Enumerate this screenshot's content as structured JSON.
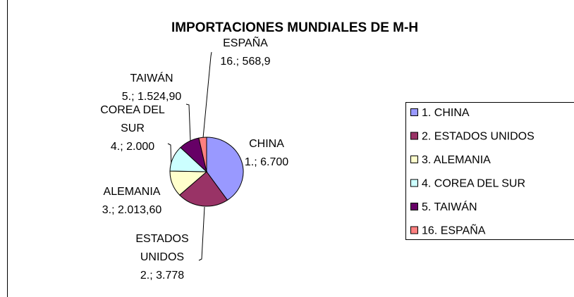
{
  "chart_data": {
    "type": "pie",
    "title": "IMPORTACIONES MUNDIALES DE M-H",
    "categories": [
      "1. CHINA",
      "2. ESTADOS UNIDOS",
      "3. ALEMANIA",
      "4. COREA DEL SUR",
      "5. TAIWÁN",
      "16. ESPAÑA"
    ],
    "label_names": [
      "CHINA",
      "ESTADOS UNIDOS",
      "ALEMANIA",
      "COREA DEL SUR",
      "TAIWÁN",
      "ESPAÑA"
    ],
    "values": [
      6700,
      3778,
      2013.6,
      2000,
      1524.9,
      568.9
    ],
    "value_labels": [
      "1.; 6.700",
      "2.; 3.778",
      "3.; 2.013,60",
      "4.; 2.000",
      "5.; 1.524,90",
      "16.; 568,9"
    ],
    "colors": [
      "#9999ff",
      "#993366",
      "#ffffcc",
      "#ccffff",
      "#660066",
      "#ff8080"
    ],
    "legend": "right"
  }
}
